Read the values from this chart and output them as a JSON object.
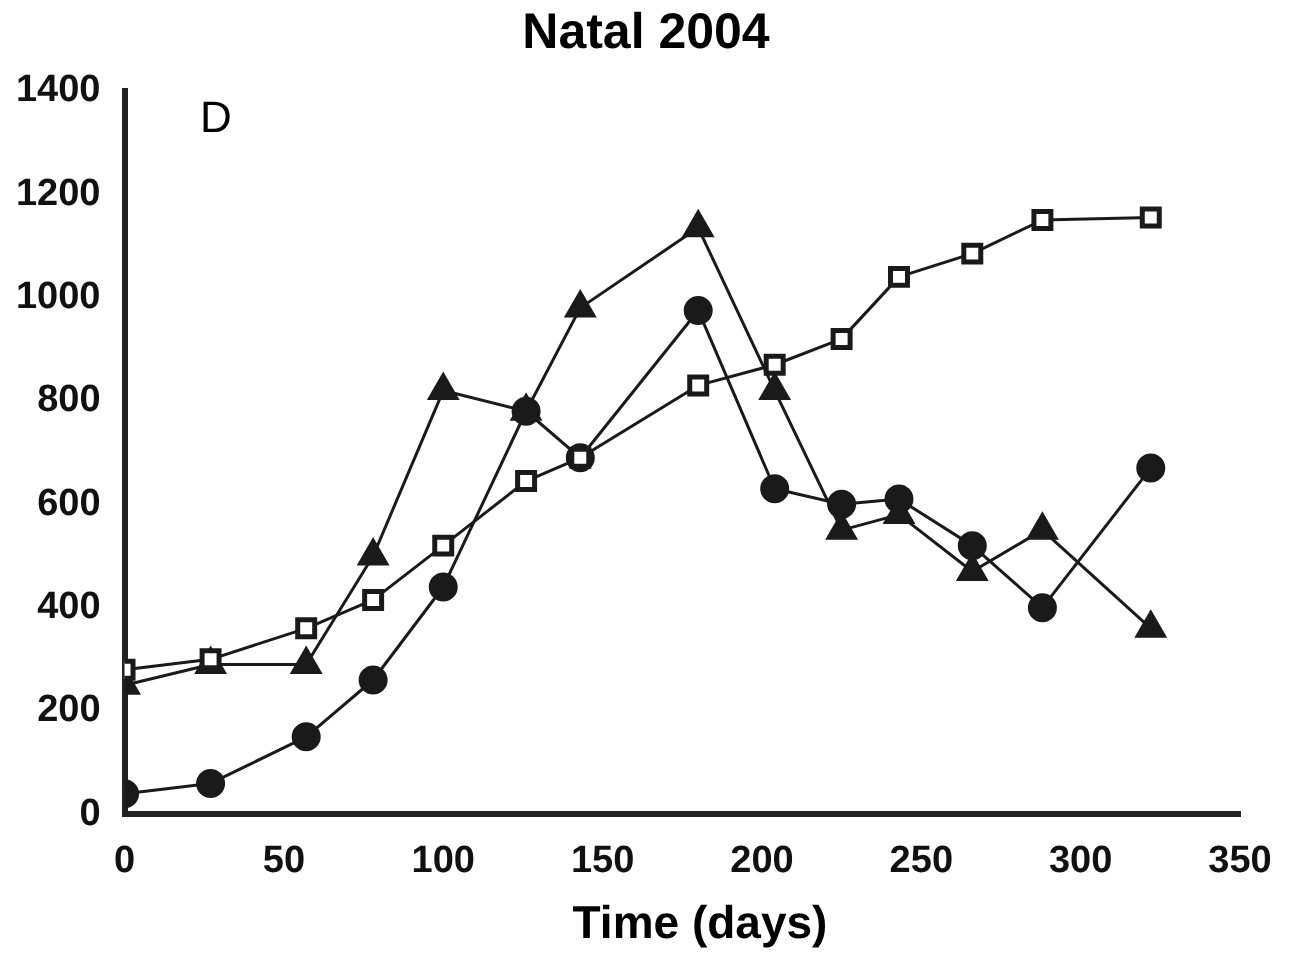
{
  "chart_data": {
    "type": "line",
    "title": "Natal 2004",
    "xlabel": "Time (days)",
    "annotations": [
      "D"
    ],
    "x": [
      0,
      27,
      57,
      78,
      100,
      126,
      143,
      180,
      204,
      225,
      243,
      266,
      288,
      322
    ],
    "xlim": [
      0,
      350
    ],
    "xticks": [
      0,
      50,
      100,
      150,
      200,
      250,
      300,
      350
    ],
    "ylim": [
      0,
      1400
    ],
    "yticks": [
      0,
      200,
      400,
      600,
      800,
      1000,
      1200,
      1400
    ],
    "grid": false,
    "legend": false,
    "line_style": "solid",
    "series": [
      {
        "color": "#1a1a1a",
        "marker": "square",
        "values": [
          280,
          300,
          360,
          415,
          520,
          645,
          690,
          830,
          870,
          920,
          1040,
          1085,
          1150,
          1155
        ]
      },
      {
        "color": "#1a1a1a",
        "marker": "triangle",
        "values": [
          250,
          290,
          290,
          500,
          820,
          780,
          980,
          1135,
          820,
          550,
          580,
          470,
          550,
          360
        ]
      },
      {
        "color": "#1a1a1a",
        "marker": "circle",
        "values": [
          40,
          60,
          150,
          260,
          440,
          780,
          690,
          975,
          630,
          600,
          610,
          520,
          400,
          670
        ]
      }
    ]
  }
}
